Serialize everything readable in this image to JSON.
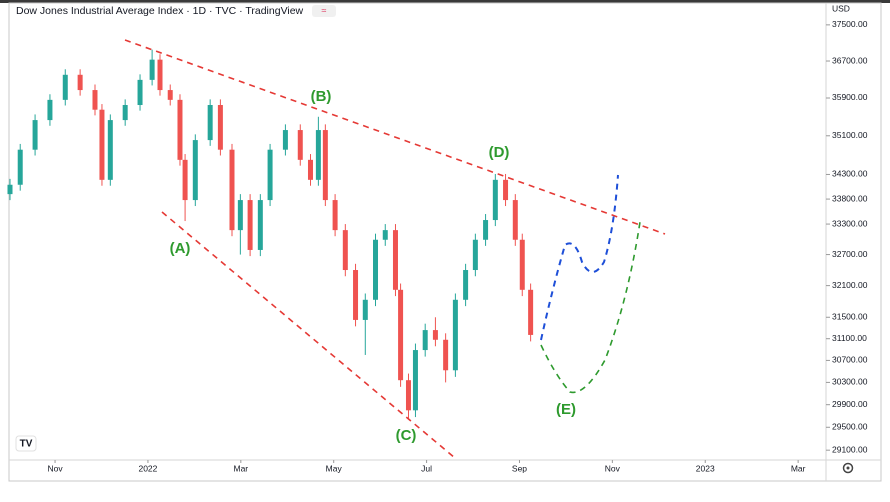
{
  "chart_data": {
    "type": "candlestick",
    "title": "Dow Jones Industrial Average Index · 1D · TVC · TradingView",
    "currency": "USD",
    "up_color": "#26a69a",
    "down_color": "#ef5350",
    "y_log": true,
    "grid": false,
    "ylim": [
      28930,
      38060
    ],
    "yticks": [
      {
        "value": 37500,
        "label": "37500.00"
      },
      {
        "value": 36700,
        "label": "36700.00"
      },
      {
        "value": 35900,
        "label": "35900.00"
      },
      {
        "value": 35100,
        "label": "35100.00"
      },
      {
        "value": 34300,
        "label": "34300.00"
      },
      {
        "value": 33800,
        "label": "33800.00"
      },
      {
        "value": 33300,
        "label": "33300.00"
      },
      {
        "value": 32700,
        "label": "32700.00"
      },
      {
        "value": 32100,
        "label": "32100.00"
      },
      {
        "value": 31500,
        "label": "31500.00"
      },
      {
        "value": 31100,
        "label": "31100.00"
      },
      {
        "value": 30700,
        "label": "30700.00"
      },
      {
        "value": 30300,
        "label": "30300.00"
      },
      {
        "value": 29900,
        "label": "29900.00"
      },
      {
        "value": 29500,
        "label": "29500.00"
      },
      {
        "value": 29100,
        "label": "29100.00"
      }
    ],
    "xlim": [
      10.03,
      27.6
    ],
    "xticks": [
      {
        "value": 11,
        "label": "Nov"
      },
      {
        "value": 13,
        "label": "2022"
      },
      {
        "value": 15,
        "label": "Mar"
      },
      {
        "value": 17,
        "label": "May"
      },
      {
        "value": 19,
        "label": "Jul"
      },
      {
        "value": 21,
        "label": "Sep"
      },
      {
        "value": 23,
        "label": "Nov"
      },
      {
        "value": 25,
        "label": "2023"
      },
      {
        "value": 27,
        "label": "Mar"
      }
    ],
    "x": [
      10.03,
      10.25,
      10.57,
      10.89,
      11.22,
      11.54,
      11.86,
      12.01,
      12.19,
      12.51,
      12.83,
      13.09,
      13.26,
      13.48,
      13.69,
      13.8,
      14.02,
      14.34,
      14.56,
      14.81,
      14.99,
      15.2,
      15.42,
      15.63,
      15.96,
      16.28,
      16.5,
      16.67,
      16.82,
      17.03,
      17.25,
      17.47,
      17.68,
      17.9,
      18.11,
      18.33,
      18.44,
      18.61,
      18.76,
      18.97,
      19.19,
      19.41,
      19.62,
      19.84,
      20.05,
      20.27,
      20.48,
      20.7,
      20.91,
      21.06,
      21.24
    ],
    "open": [
      33900,
      34090,
      34810,
      35430,
      35860,
      36400,
      36070,
      35650,
      34190,
      35430,
      35750,
      36290,
      36730,
      36070,
      35860,
      34600,
      33780,
      35010,
      35750,
      34810,
      33180,
      33780,
      32790,
      33780,
      34810,
      35220,
      34600,
      34190,
      35220,
      33780,
      33180,
      32400,
      31450,
      31830,
      32990,
      33180,
      32020,
      30340,
      29800,
      30890,
      31260,
      31080,
      30520,
      31830,
      32400,
      32990,
      33380,
      34190,
      33780,
      32990,
      32020
    ],
    "high": [
      34210,
      34930,
      35550,
      35980,
      36520,
      36520,
      36190,
      35770,
      35550,
      35870,
      36410,
      36950,
      36850,
      36190,
      35980,
      34720,
      35130,
      35870,
      35870,
      34930,
      33900,
      33900,
      33900,
      34930,
      35340,
      35340,
      34720,
      35500,
      35340,
      33900,
      33300,
      32520,
      31950,
      33110,
      33300,
      33300,
      32140,
      30460,
      31010,
      31380,
      31500,
      31200,
      31950,
      32520,
      33110,
      33500,
      34310,
      34310,
      33900,
      33110,
      32140
    ],
    "low": [
      33780,
      33970,
      34690,
      35310,
      35740,
      35950,
      35530,
      34070,
      34070,
      35310,
      35630,
      36170,
      35950,
      35740,
      34480,
      33360,
      33660,
      34890,
      34690,
      33060,
      32700,
      32670,
      32670,
      33660,
      34690,
      34480,
      34070,
      34070,
      33660,
      33060,
      32280,
      31330,
      30800,
      31710,
      32870,
      31900,
      30220,
      29650,
      29680,
      30770,
      30960,
      30300,
      30400,
      31710,
      32280,
      32870,
      33260,
      33660,
      32870,
      31900,
      31050
    ],
    "close": [
      34090,
      34810,
      35430,
      35860,
      36400,
      36070,
      35650,
      34190,
      35430,
      35750,
      36290,
      36730,
      36070,
      35860,
      34600,
      33780,
      35010,
      35750,
      34810,
      33180,
      33780,
      32790,
      33780,
      34810,
      35220,
      34600,
      34190,
      35220,
      33780,
      33180,
      32400,
      31450,
      31830,
      32990,
      33180,
      32020,
      30340,
      29800,
      30890,
      31260,
      31080,
      30520,
      31830,
      32400,
      32990,
      33380,
      34190,
      33780,
      32990,
      32020,
      31170
    ],
    "annotations": [
      "(A)",
      "(B)",
      "(C)",
      "(D)",
      "(E)"
    ]
  }
}
